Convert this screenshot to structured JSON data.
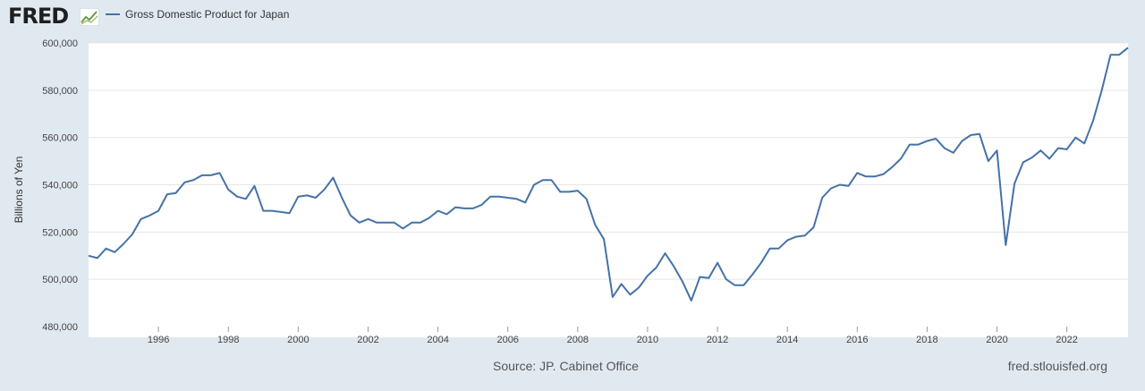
{
  "header": {
    "logo_text": "FRED",
    "logo_icon": "chart-line-icon",
    "legend_label": "Gross Domestic Product for Japan",
    "series_color": "#4572a7"
  },
  "footer": {
    "source": "Source: JP. Cabinet Office",
    "site": "fred.stlouisfed.org"
  },
  "chart_data": {
    "type": "line",
    "title": "",
    "xlabel": "",
    "ylabel": "Billions of Yen",
    "ylim": [
      480000,
      600000
    ],
    "xlim": [
      1994.0,
      2023.75
    ],
    "grid": true,
    "legend": "top-left",
    "y_ticks": [
      480000,
      500000,
      520000,
      540000,
      560000,
      580000,
      600000
    ],
    "y_tick_labels": [
      "480,000",
      "500,000",
      "520,000",
      "540,000",
      "560,000",
      "580,000",
      "600,000"
    ],
    "x_ticks": [
      1996,
      1998,
      2000,
      2002,
      2004,
      2006,
      2008,
      2010,
      2012,
      2014,
      2016,
      2018,
      2020,
      2022
    ],
    "x_tick_labels": [
      "1996",
      "1998",
      "2000",
      "2002",
      "2004",
      "2006",
      "2008",
      "2010",
      "2012",
      "2014",
      "2016",
      "2018",
      "2020",
      "2022"
    ],
    "series": [
      {
        "name": "Gross Domestic Product for Japan",
        "x": [
          1994.0,
          1994.25,
          1994.5,
          1994.75,
          1995.0,
          1995.25,
          1995.5,
          1995.75,
          1996.0,
          1996.25,
          1996.5,
          1996.75,
          1997.0,
          1997.25,
          1997.5,
          1997.75,
          1998.0,
          1998.25,
          1998.5,
          1998.75,
          1999.0,
          1999.25,
          1999.5,
          1999.75,
          2000.0,
          2000.25,
          2000.5,
          2000.75,
          2001.0,
          2001.25,
          2001.5,
          2001.75,
          2002.0,
          2002.25,
          2002.5,
          2002.75,
          2003.0,
          2003.25,
          2003.5,
          2003.75,
          2004.0,
          2004.25,
          2004.5,
          2004.75,
          2005.0,
          2005.25,
          2005.5,
          2005.75,
          2006.0,
          2006.25,
          2006.5,
          2006.75,
          2007.0,
          2007.25,
          2007.5,
          2007.75,
          2008.0,
          2008.25,
          2008.5,
          2008.75,
          2009.0,
          2009.25,
          2009.5,
          2009.75,
          2010.0,
          2010.25,
          2010.5,
          2010.75,
          2011.0,
          2011.25,
          2011.5,
          2011.75,
          2012.0,
          2012.25,
          2012.5,
          2012.75,
          2013.0,
          2013.25,
          2013.5,
          2013.75,
          2014.0,
          2014.25,
          2014.5,
          2014.75,
          2015.0,
          2015.25,
          2015.5,
          2015.75,
          2016.0,
          2016.25,
          2016.5,
          2016.75,
          2017.0,
          2017.25,
          2017.5,
          2017.75,
          2018.0,
          2018.25,
          2018.5,
          2018.75,
          2019.0,
          2019.25,
          2019.5,
          2019.75,
          2020.0,
          2020.25,
          2020.5,
          2020.75,
          2021.0,
          2021.25,
          2021.5,
          2021.75,
          2022.0,
          2022.25,
          2022.5,
          2022.75,
          2023.0,
          2023.25,
          2023.5,
          2023.75
        ],
        "values": [
          510000,
          509000,
          513000,
          511500,
          515000,
          519000,
          525500,
          527000,
          529000,
          536000,
          536500,
          541000,
          542000,
          544000,
          544000,
          545000,
          538000,
          535000,
          534000,
          539500,
          529000,
          529000,
          528500,
          528000,
          535000,
          535500,
          534500,
          538000,
          543000,
          534500,
          527000,
          524000,
          525500,
          524000,
          524000,
          524000,
          521500,
          524000,
          524000,
          526000,
          529000,
          527500,
          530500,
          530000,
          530000,
          531500,
          535000,
          535000,
          534500,
          534000,
          532500,
          540000,
          542000,
          542000,
          537000,
          537000,
          537500,
          534000,
          523000,
          517000,
          492500,
          498000,
          493500,
          496500,
          501500,
          505000,
          511000,
          505500,
          499000,
          491000,
          501000,
          500500,
          507000,
          500000,
          497500,
          497500,
          502000,
          507000,
          513000,
          513000,
          516500,
          518000,
          518500,
          522000,
          534500,
          538500,
          540000,
          539500,
          545000,
          543500,
          543500,
          544500,
          547500,
          551000,
          557000,
          557000,
          558500,
          559500,
          555500,
          553500,
          558500,
          561000,
          561500,
          550000,
          554500,
          514500,
          540500,
          549500,
          551500,
          554500,
          551000,
          555500,
          555000,
          560000,
          557500,
          567000,
          580000,
          595000,
          595000,
          598000
        ]
      }
    ]
  }
}
